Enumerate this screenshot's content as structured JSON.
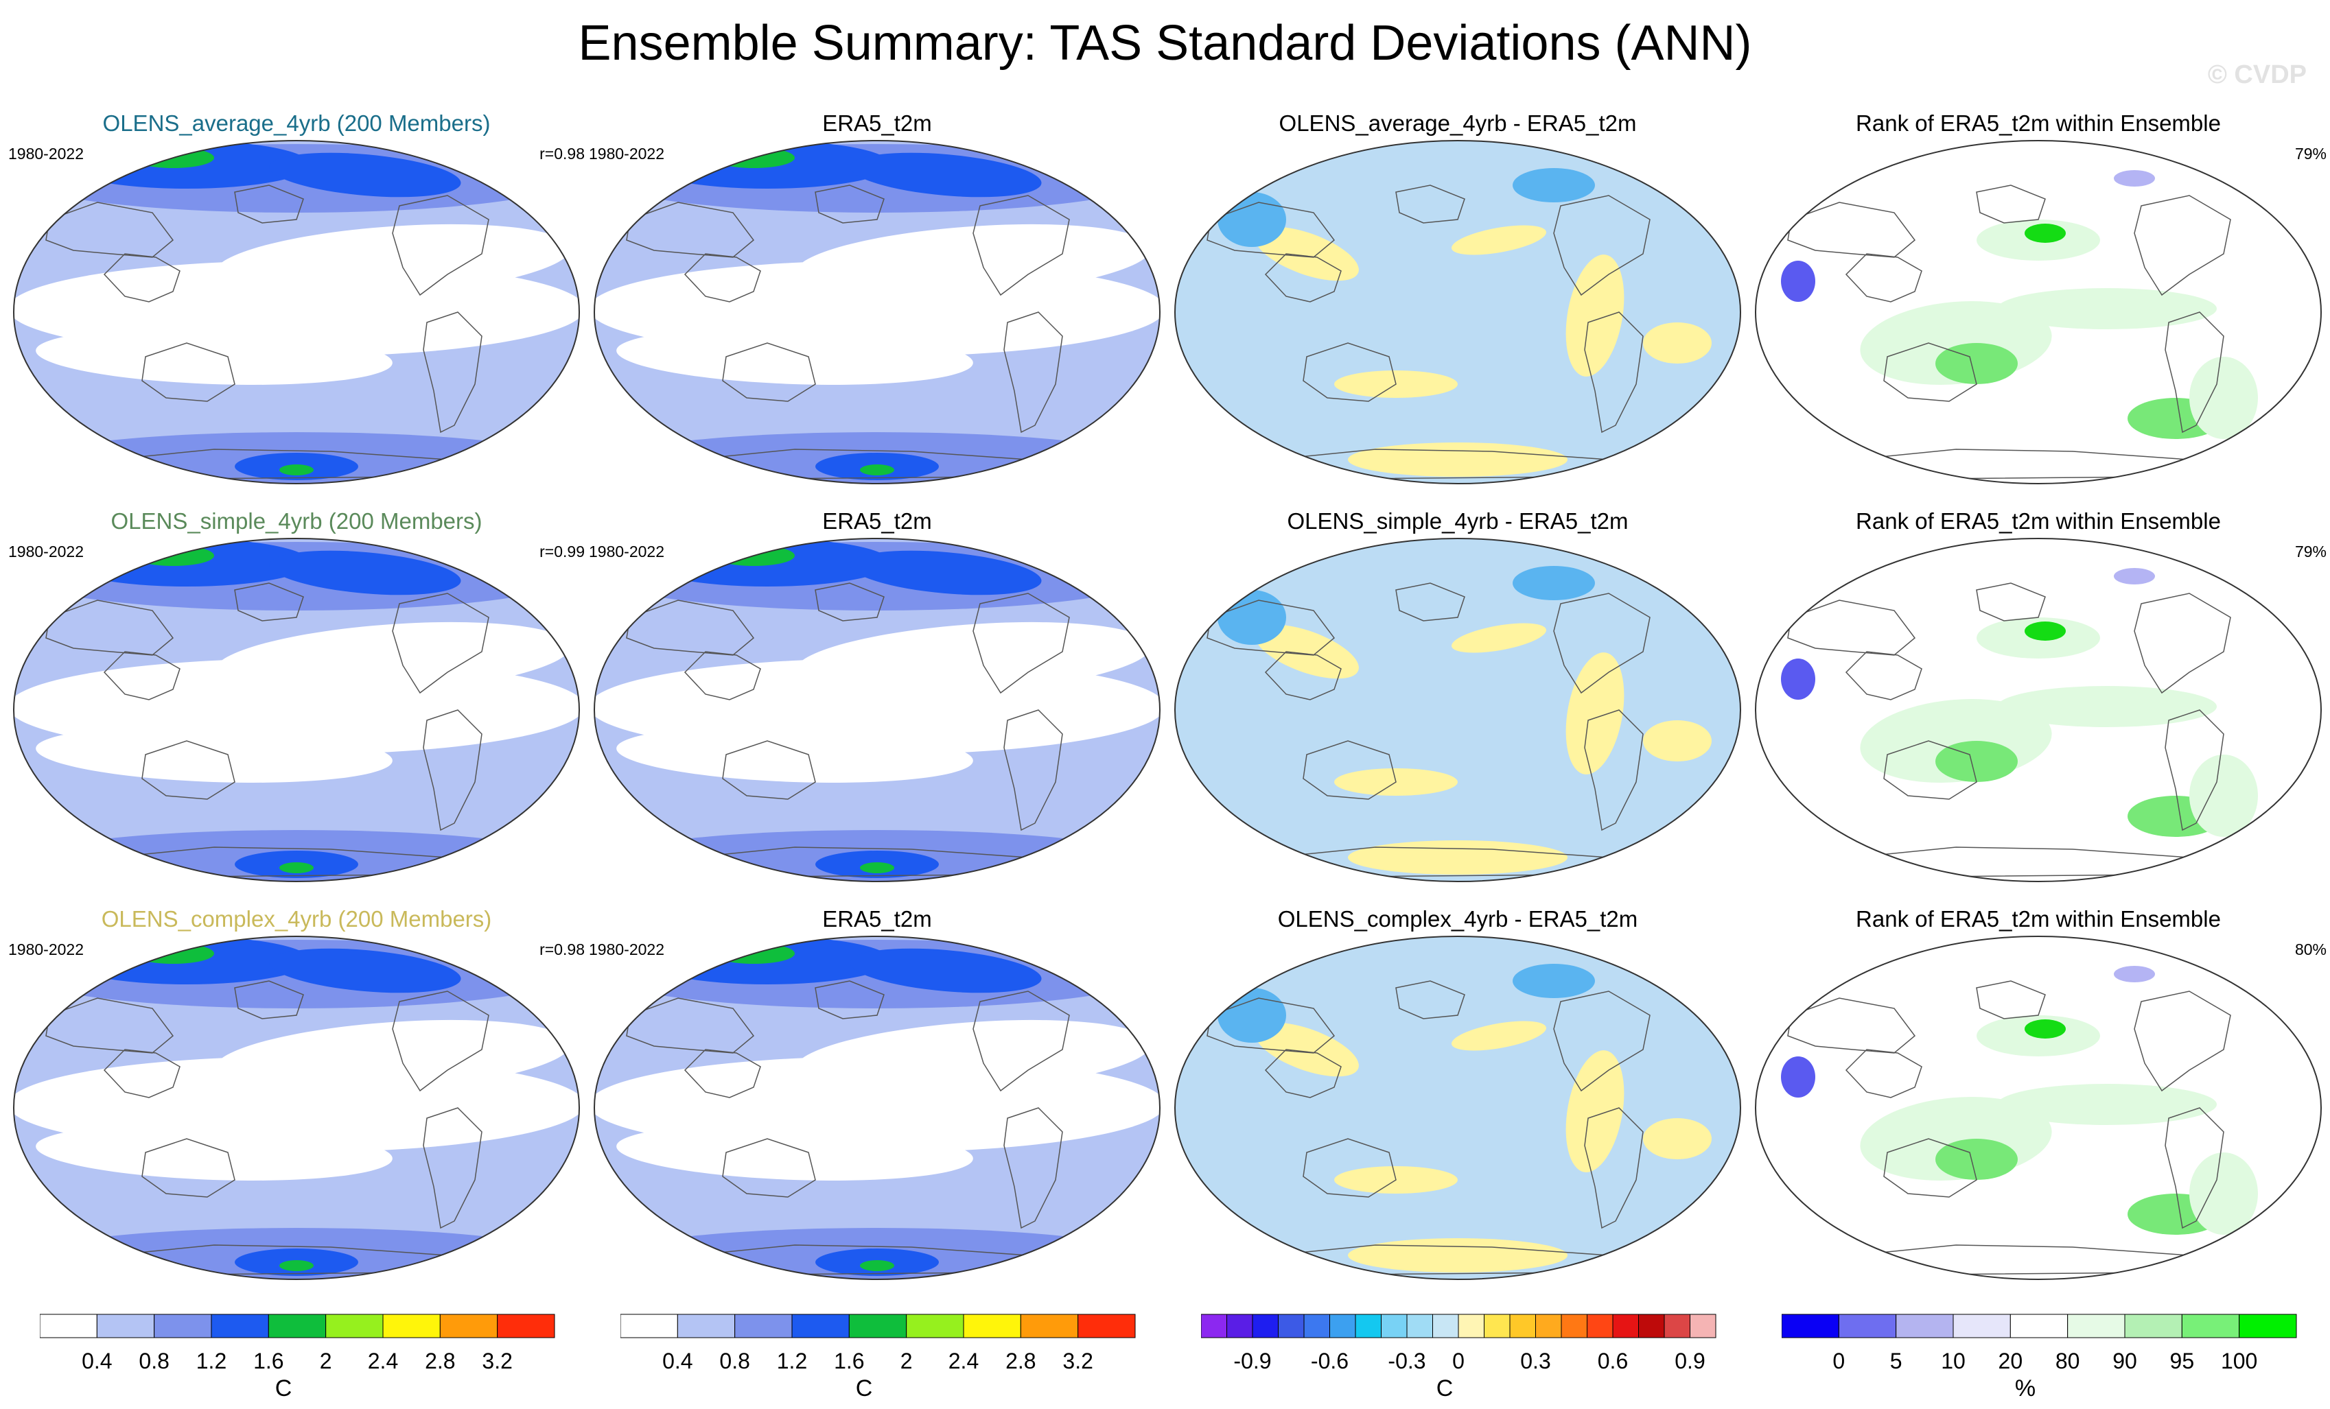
{
  "figure": {
    "title": "Ensemble Summary: TAS Standard Deviations (ANN)",
    "watermark": "© CVDP"
  },
  "rows": [
    {
      "panels": [
        {
          "kind": "model",
          "title": "OLENS_average_4yrb (200 Members)",
          "title_color": "#1a6e8a",
          "left": "1980-2022",
          "right": "r=0.98"
        },
        {
          "kind": "obs",
          "title": "ERA5_t2m",
          "title_color": "#000000",
          "left": "1980-2022",
          "right": ""
        },
        {
          "kind": "diff",
          "title": "OLENS_average_4yrb - ERA5_t2m",
          "title_color": "#000000",
          "left": "",
          "right": ""
        },
        {
          "kind": "rank",
          "title": "Rank of ERA5_t2m within Ensemble",
          "title_color": "#000000",
          "left": "",
          "right": "79%"
        }
      ]
    },
    {
      "panels": [
        {
          "kind": "model",
          "title": "OLENS_simple_4yrb (200 Members)",
          "title_color": "#5a8a5a",
          "left": "1980-2022",
          "right": "r=0.99"
        },
        {
          "kind": "obs",
          "title": "ERA5_t2m",
          "title_color": "#000000",
          "left": "1980-2022",
          "right": ""
        },
        {
          "kind": "diff",
          "title": "OLENS_simple_4yrb - ERA5_t2m",
          "title_color": "#000000",
          "left": "",
          "right": ""
        },
        {
          "kind": "rank",
          "title": "Rank of ERA5_t2m within Ensemble",
          "title_color": "#000000",
          "left": "",
          "right": "79%"
        }
      ]
    },
    {
      "panels": [
        {
          "kind": "model",
          "title": "OLENS_complex_4yrb (200 Members)",
          "title_color": "#c9b95a",
          "left": "1980-2022",
          "right": "r=0.98"
        },
        {
          "kind": "obs",
          "title": "ERA5_t2m",
          "title_color": "#000000",
          "left": "1980-2022",
          "right": ""
        },
        {
          "kind": "diff",
          "title": "OLENS_complex_4yrb - ERA5_t2m",
          "title_color": "#000000",
          "left": "",
          "right": ""
        },
        {
          "kind": "rank",
          "title": "Rank of ERA5_t2m within Ensemble",
          "title_color": "#000000",
          "left": "",
          "right": "80%"
        }
      ]
    }
  ],
  "palettes": {
    "ocean": "#c4dcf0",
    "std_low": "#ffffff",
    "std_1": "#b4c4f4",
    "std_2": "#7d92ec",
    "std_3": "#1d5af0",
    "std_4": "#0fbe3c",
    "diff_neg": "#bcdcf4",
    "diff_pos": "#fff4a0",
    "diff_strong_neg": "#5ab4f0",
    "rank_light": "#e0fae0",
    "rank_mid": "#78e878",
    "rank_strong": "#14dc14",
    "rank_low": "#5a5af0",
    "rank_verylow": "#b4b4f4"
  },
  "colorbars": [
    {
      "name": "std-colorbar-1",
      "colors": [
        "#ffffff",
        "#b4c4f4",
        "#7d92ec",
        "#1d5af0",
        "#0fbe3c",
        "#96f01e",
        "#fff50a",
        "#ff9b0a",
        "#ff2d0a"
      ],
      "ticks": [
        "0.4",
        "0.8",
        "1.2",
        "1.6",
        "2",
        "2.4",
        "2.8",
        "3.2"
      ],
      "unit": "C"
    },
    {
      "name": "std-colorbar-2",
      "colors": [
        "#ffffff",
        "#b4c4f4",
        "#7d92ec",
        "#1d5af0",
        "#0fbe3c",
        "#96f01e",
        "#fff50a",
        "#ff9b0a",
        "#ff2d0a"
      ],
      "ticks": [
        "0.4",
        "0.8",
        "1.2",
        "1.6",
        "2",
        "2.4",
        "2.8",
        "3.2"
      ],
      "unit": "C"
    },
    {
      "name": "diff-colorbar",
      "colors": [
        "#8c28f0",
        "#5a1ee6",
        "#1e1ef0",
        "#3c5ae6",
        "#3c78f0",
        "#3ca0f0",
        "#14c8f0",
        "#78d2f5",
        "#a0dcf5",
        "#c8e6f5",
        "#fff5b4",
        "#ffe650",
        "#ffc828",
        "#ffaa1e",
        "#ff7814",
        "#ff4614",
        "#e61414",
        "#be0a0a",
        "#dc4646",
        "#f5b4b4"
      ],
      "ticks": [
        "-0.9",
        "-0.6",
        "-0.3",
        "0",
        "0.3",
        "0.6",
        "0.9"
      ],
      "tick_index": [
        2,
        5,
        8,
        10,
        13,
        16,
        19
      ],
      "unit": "C"
    },
    {
      "name": "rank-colorbar",
      "colors": [
        "#0a00f5",
        "#6e6ef0",
        "#b4b4f0",
        "#e6e6fa",
        "#ffffff",
        "#e6fae6",
        "#b4f0b4",
        "#78f078",
        "#00f000"
      ],
      "ticks": [
        "0",
        "5",
        "10",
        "20",
        "80",
        "90",
        "95",
        "100"
      ],
      "unit": "%"
    }
  ]
}
